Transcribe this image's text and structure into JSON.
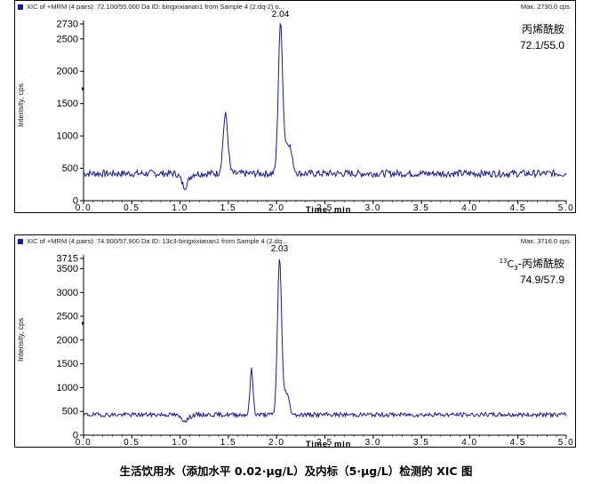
{
  "caption": "生活饮用水（添加水平 0.02·μg/L）及内标（5·μg/L）检测的 XIC 图",
  "chart_data": [
    {
      "type": "line",
      "header": "XIC of +MRM (4 pairs): 72.100/55.000 Da ID: bingxixianan1 from Sample 4 (2.dq-2) o...",
      "max_label": "Max. 2730.0 cps.",
      "compound": "丙烯酰胺",
      "transition": "72.1/55.0",
      "peak_label": "2.04",
      "xlabel": "Time, min",
      "ylabel": "Intensity, cps",
      "xlim": [
        0,
        5.0
      ],
      "ylim": [
        0,
        2730
      ],
      "x_ticks": [
        "0.0",
        "0.5",
        "1.0",
        "1.5",
        "2.0",
        "2.5",
        "3.0",
        "3.5",
        "4.0",
        "4.5",
        "5.0"
      ],
      "y_ticks": [
        "0",
        "500",
        "1000",
        "1500",
        "2000",
        "2500",
        "2730"
      ],
      "line_color": "#1a1a8c",
      "baseline": 420,
      "noise": 55,
      "peaks": [
        {
          "x": 1.47,
          "height": 1330,
          "width": 0.035
        },
        {
          "x": 2.04,
          "height": 2730,
          "width": 0.032
        },
        {
          "x": 2.12,
          "height": 900,
          "width": 0.05
        }
      ],
      "dips": [
        {
          "x": 1.05,
          "depth": 200,
          "width": 0.05
        }
      ],
      "seed": 7
    },
    {
      "type": "line",
      "header": "XIC of +MRM (4 pairs): 74.900/57.900 Da ID: 13c3-bingxixianan1 from Sample 4 (2.dq...",
      "max_label": "Max. 3716.0 cps.",
      "compound_prefix": "13",
      "compound_sub": "C3",
      "compound": "-丙烯酰胺",
      "transition": "74.9/57.9",
      "peak_label": "2.03",
      "xlabel": "Time, min",
      "ylabel": "Intensity, cps",
      "xlim": [
        0,
        5.0
      ],
      "ylim": [
        0,
        3715
      ],
      "x_ticks": [
        "0.0",
        "0.5",
        "1.0",
        "1.5",
        "2.0",
        "2.5",
        "3.0",
        "3.5",
        "4.0",
        "4.5",
        "5.0"
      ],
      "y_ticks": [
        "0",
        "500",
        "1000",
        "1500",
        "2000",
        "2500",
        "3000",
        "3500",
        "3715"
      ],
      "line_color": "#1a1a8c",
      "baseline": 430,
      "noise": 45,
      "peaks": [
        {
          "x": 1.74,
          "height": 1380,
          "width": 0.022
        },
        {
          "x": 2.03,
          "height": 3716,
          "width": 0.03
        },
        {
          "x": 2.1,
          "height": 900,
          "width": 0.04
        }
      ],
      "dips": [
        {
          "x": 1.05,
          "depth": 120,
          "width": 0.06
        }
      ],
      "seed": 19
    }
  ]
}
